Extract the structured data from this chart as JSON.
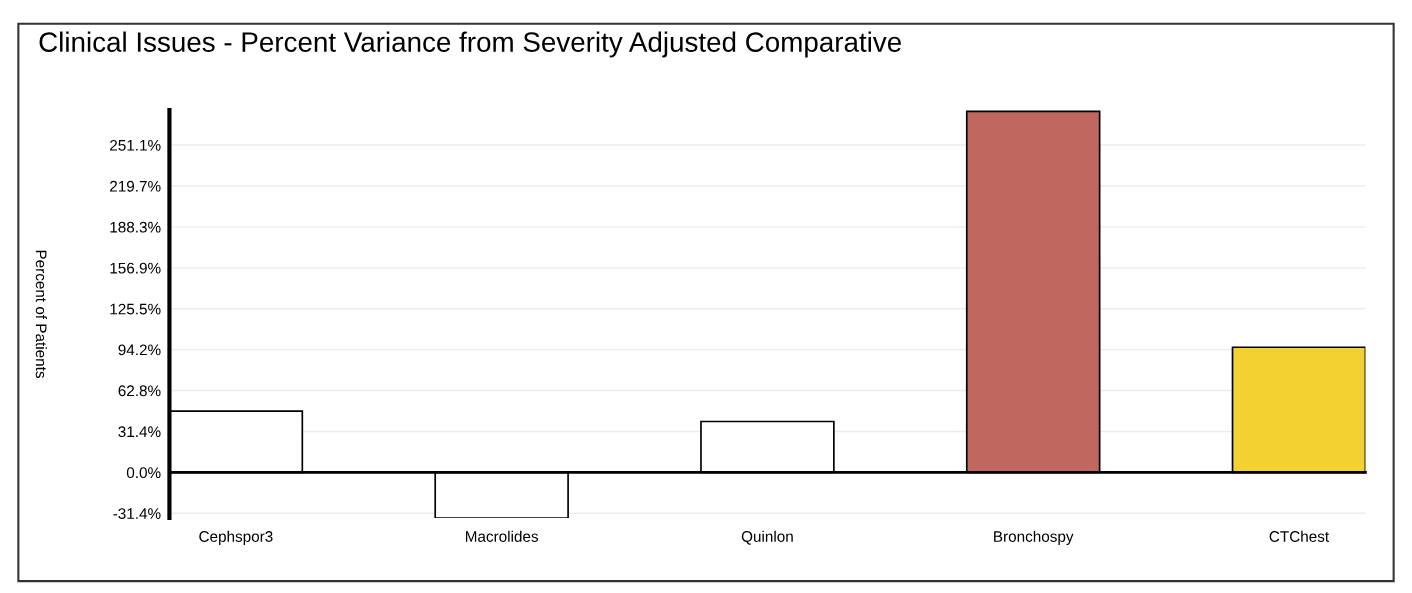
{
  "chart_data": {
    "type": "bar",
    "title": "Clinical Issues - Percent Variance from Severity Adjusted Comparative",
    "ylabel": "Percent of Patients",
    "categories": [
      "Cephspor3",
      "Macrolides",
      "Quinlon",
      "Bronchospy",
      "CTChest"
    ],
    "values": [
      47,
      -35,
      39,
      277,
      96
    ],
    "colors": [
      "#ffffff",
      "#ffffff",
      "#ffffff",
      "#c0675f",
      "#f2d130"
    ],
    "ylim": [
      -35,
      278
    ],
    "yticks": [
      {
        "value": -31.4,
        "label": "-31.4%"
      },
      {
        "value": 0,
        "label": "0.0%"
      },
      {
        "value": 31.4,
        "label": "31.4%"
      },
      {
        "value": 62.8,
        "label": "62.8%"
      },
      {
        "value": 94.2,
        "label": "94.2%"
      },
      {
        "value": 125.5,
        "label": "125.5%"
      },
      {
        "value": 156.9,
        "label": "156.9%"
      },
      {
        "value": 188.3,
        "label": "188.3%"
      },
      {
        "value": 219.7,
        "label": "219.7%"
      },
      {
        "value": 251.1,
        "label": "251.1%"
      }
    ],
    "grid": "y"
  }
}
